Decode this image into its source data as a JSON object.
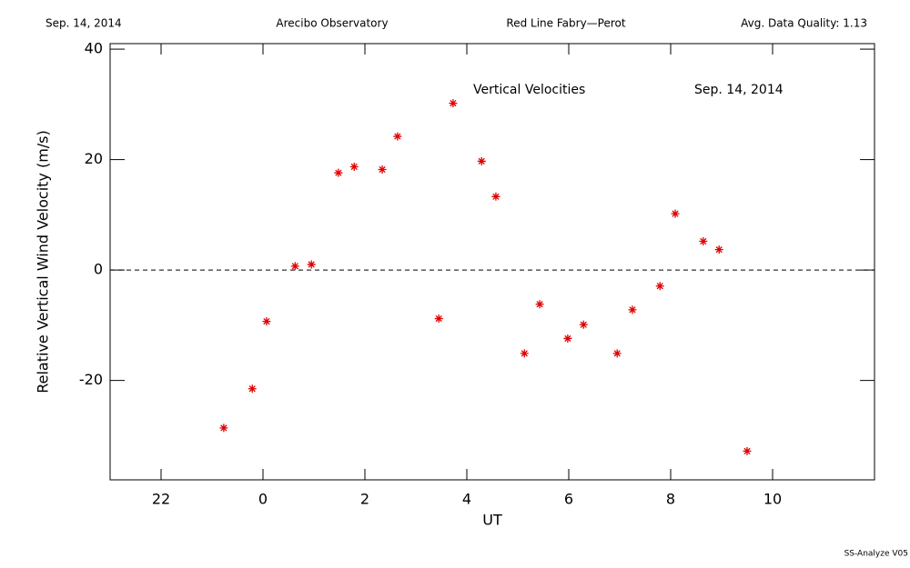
{
  "header": {
    "date": "Sep. 14, 2014",
    "site": "Arecibo Observatory",
    "instrument": "Red Line Fabry—Perot",
    "quality": "Avg. Data Quality: 1.13"
  },
  "footer": "SS-Analyze V05",
  "chart_data": {
    "type": "scatter",
    "annotations": [
      "Vertical Velocities",
      "Sep. 14, 2014"
    ],
    "xlabel": "UT",
    "ylabel": "Relative Vertical Wind Velocity (m/s)",
    "x": [
      -0.77,
      -0.21,
      0.07,
      0.63,
      0.95,
      1.48,
      1.79,
      2.34,
      2.64,
      3.45,
      3.73,
      4.29,
      4.57,
      5.13,
      5.43,
      5.98,
      6.29,
      6.95,
      7.25,
      7.79,
      8.09,
      8.64,
      8.95,
      9.5
    ],
    "values": [
      -28.6,
      -21.5,
      -9.3,
      0.7,
      1.0,
      17.6,
      18.7,
      18.2,
      24.2,
      -8.8,
      30.2,
      19.7,
      13.3,
      -15.1,
      -6.2,
      -12.4,
      -9.9,
      -15.1,
      -7.2,
      -2.9,
      10.2,
      5.2,
      3.7,
      -32.8
    ],
    "color": "#e00000",
    "xlim": [
      -3,
      12
    ],
    "xticks": [
      {
        "value": -2,
        "label": "22"
      },
      0,
      2,
      4,
      6,
      8,
      10
    ],
    "ylim": [
      -38,
      41
    ],
    "yticks": [
      -20,
      0,
      20,
      40
    ],
    "hline": 0
  }
}
